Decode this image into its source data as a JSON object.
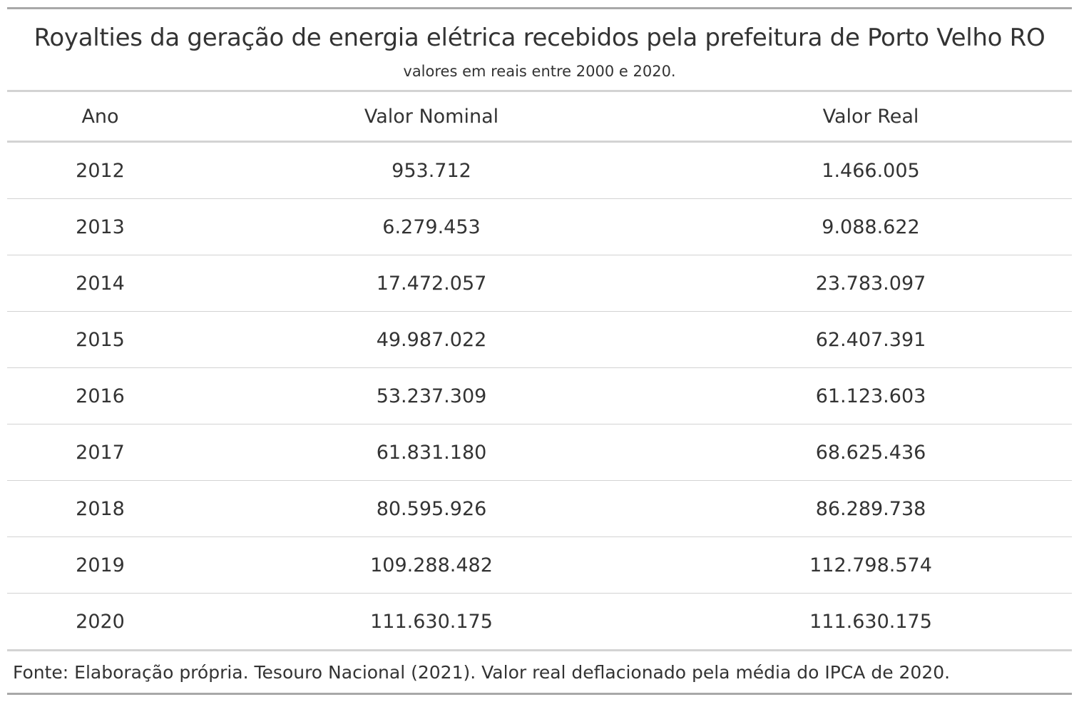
{
  "title": "Royalties da geração de energia elétrica recebidos pela prefeitura de Porto Velho RO",
  "subtitle": "valores em reais entre 2000 e 2020.",
  "columns": {
    "ano": "Ano",
    "valor_nominal": "Valor Nominal",
    "valor_real": "Valor Real"
  },
  "rows": [
    {
      "ano": "2012",
      "valor_nominal": "953.712",
      "valor_real": "1.466.005"
    },
    {
      "ano": "2013",
      "valor_nominal": "6.279.453",
      "valor_real": "9.088.622"
    },
    {
      "ano": "2014",
      "valor_nominal": "17.472.057",
      "valor_real": "23.783.097"
    },
    {
      "ano": "2015",
      "valor_nominal": "49.987.022",
      "valor_real": "62.407.391"
    },
    {
      "ano": "2016",
      "valor_nominal": "53.237.309",
      "valor_real": "61.123.603"
    },
    {
      "ano": "2017",
      "valor_nominal": "61.831.180",
      "valor_real": "68.625.436"
    },
    {
      "ano": "2018",
      "valor_nominal": "80.595.926",
      "valor_real": "86.289.738"
    },
    {
      "ano": "2019",
      "valor_nominal": "109.288.482",
      "valor_real": "112.798.574"
    },
    {
      "ano": "2020",
      "valor_nominal": "111.630.175",
      "valor_real": "111.630.175"
    }
  ],
  "source_note": "Fonte: Elaboração própria. Tesouro Nacional (2021). Valor real deflacionado pela média do IPCA de 2020."
}
